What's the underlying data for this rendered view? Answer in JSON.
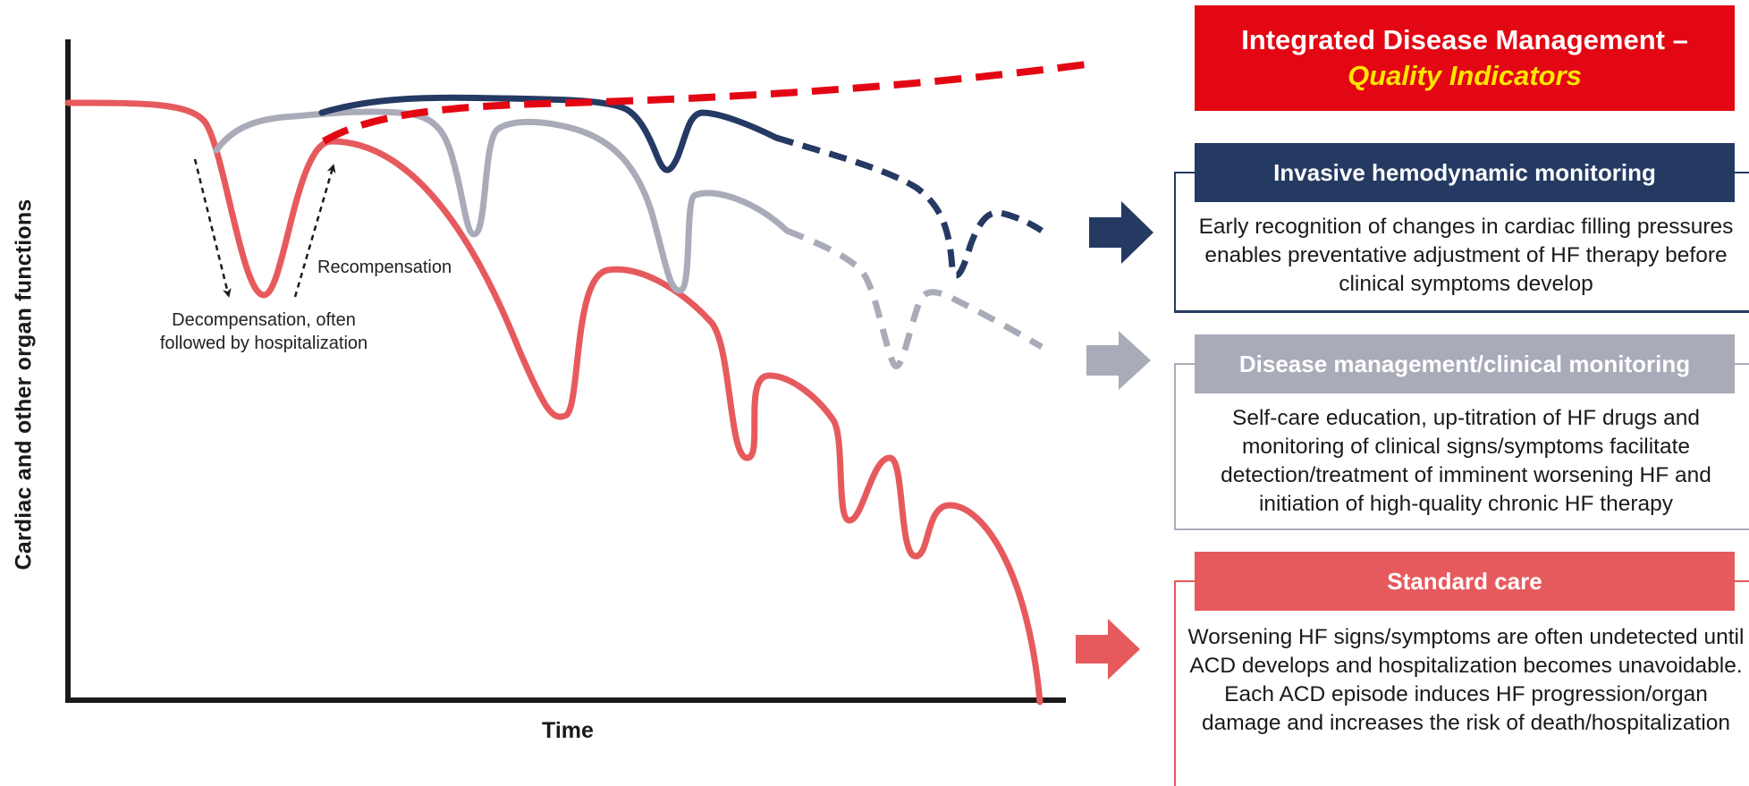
{
  "diagram": {
    "y_axis_title": "Cardiac and other organ functions",
    "x_axis_title": "Time",
    "annotation_decompensation": [
      "Decompensation, often",
      "followed by hospitalization"
    ],
    "annotation_recompensation": "Recompensation"
  },
  "title": {
    "line1": "Integrated Disease Management –",
    "line2": "Quality Indicators"
  },
  "panels": [
    {
      "heading": "Invasive hemodynamic monitoring",
      "body": "Early recognition of changes in cardiac filling pressures enables preventative adjustment of HF therapy before clinical symptoms develop",
      "color": "#253a63"
    },
    {
      "heading": "Disease management/clinical monitoring",
      "body": "Self-care education, up-titration of HF drugs and monitoring of clinical signs/symptoms facilitate detection/treatment of imminent worsening HF and initiation of high-quality chronic HF therapy",
      "color": "#a9abb9"
    },
    {
      "heading": "Standard care",
      "body": "Worsening HF signs/symptoms are often undetected until ACD develops and hospitalization becomes unavoidable. Each ACD episode induces HF progression/organ damage and increases the risk of death/hospitalization",
      "color": "#e65a5d"
    }
  ],
  "colors": {
    "red_target": "#e30613",
    "navy": "#253a63",
    "grey": "#a9abb9",
    "salmon": "#e65a5d",
    "axis": "#1a1a1a",
    "title_accent": "#ffe600"
  }
}
